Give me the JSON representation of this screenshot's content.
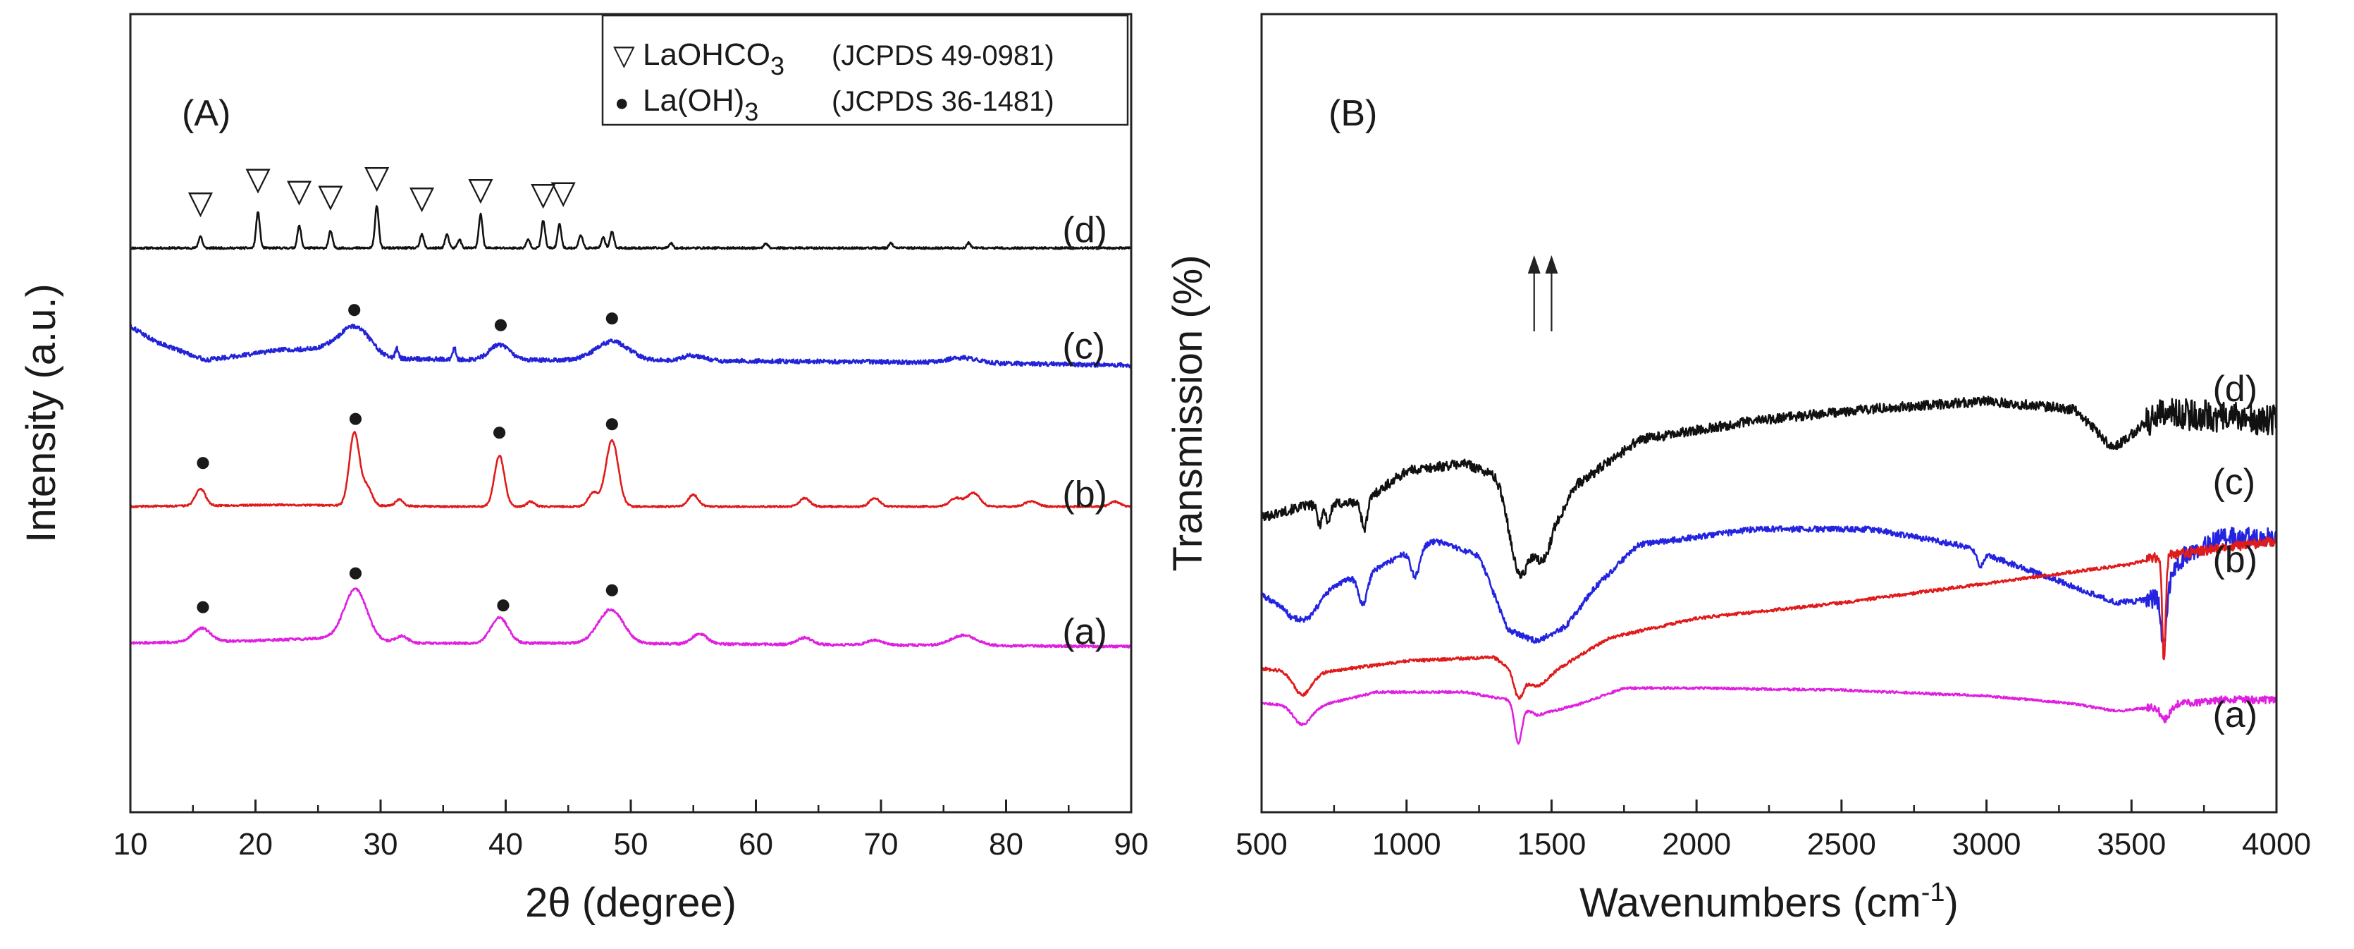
{
  "chart_data": [
    {
      "panel": "(A)",
      "type": "line",
      "xlabel": "2θ (degree)",
      "ylabel": "Intensity (a.u.)",
      "xlim": [
        10,
        90
      ],
      "xticks": [
        10,
        20,
        30,
        40,
        50,
        60,
        70,
        80,
        90
      ],
      "legend": {
        "position": "top-right",
        "entries": [
          {
            "marker": "▽",
            "label_main": "LaOHCO",
            "label_sub": "3",
            "ref": "(JCPDS 49-0981)"
          },
          {
            "marker": "●",
            "label_main": "La(OH)",
            "label_sub": "3",
            "ref": "(JCPDS 36-1481)"
          }
        ]
      },
      "series": [
        {
          "name": "(d)",
          "color": "#111111",
          "baseline": 0.55,
          "noise": 0.06,
          "hump": [],
          "peaks": [
            [
              15.6,
              0.7,
              0.15
            ],
            [
              20.2,
              2.1,
              0.15
            ],
            [
              23.5,
              1.3,
              0.15
            ],
            [
              26.0,
              1.0,
              0.15
            ],
            [
              29.7,
              2.5,
              0.15
            ],
            [
              33.3,
              0.8,
              0.15
            ],
            [
              35.3,
              0.8,
              0.15
            ],
            [
              36.3,
              0.5,
              0.15
            ],
            [
              38.0,
              2.0,
              0.15
            ],
            [
              41.8,
              0.5,
              0.15
            ],
            [
              43.0,
              1.6,
              0.15
            ],
            [
              44.3,
              1.4,
              0.15
            ],
            [
              46.0,
              0.8,
              0.15
            ],
            [
              47.8,
              0.6,
              0.15
            ],
            [
              48.5,
              1.0,
              0.15
            ],
            [
              53.2,
              0.3,
              0.15
            ],
            [
              60.8,
              0.3,
              0.15
            ],
            [
              70.8,
              0.3,
              0.15
            ],
            [
              77.0,
              0.3,
              0.15
            ]
          ],
          "markers": [
            {
              "symbol": "▽",
              "x": 15.6,
              "level": 2.6
            },
            {
              "symbol": "▽",
              "x": 20.2,
              "level": 4.0
            },
            {
              "symbol": "▽",
              "x": 23.5,
              "level": 3.3
            },
            {
              "symbol": "▽",
              "x": 26.0,
              "level": 3.0
            },
            {
              "symbol": "▽",
              "x": 29.7,
              "level": 4.1
            },
            {
              "symbol": "▽",
              "x": 33.3,
              "level": 2.9
            },
            {
              "symbol": "▽",
              "x": 38.0,
              "level": 3.4
            },
            {
              "symbol": "▽",
              "x": 43.0,
              "level": 3.1
            },
            {
              "symbol": "▽",
              "x": 44.6,
              "level": 3.2
            }
          ]
        },
        {
          "name": "(c)",
          "color": "#2323d8",
          "baseline": 0.5,
          "noise": 0.13,
          "hump": [
            [
              10,
              2.3
            ],
            [
              12,
              1.4
            ],
            [
              16,
              0.3
            ],
            [
              22,
              0.9
            ],
            [
              26,
              1.0
            ],
            [
              30,
              0.4
            ],
            [
              40,
              0.3
            ],
            [
              50,
              0.3
            ],
            [
              70,
              0.2
            ],
            [
              90,
              0.0
            ]
          ],
          "peaks": [
            [
              28.0,
              1.6,
              1.2
            ],
            [
              39.5,
              0.9,
              0.8
            ],
            [
              48.5,
              1.1,
              1.3
            ],
            [
              31.3,
              0.6,
              0.12
            ],
            [
              35.9,
              0.7,
              0.12
            ],
            [
              55.0,
              0.3,
              0.8
            ],
            [
              76.5,
              0.3,
              1.2
            ]
          ],
          "markers": [
            {
              "symbol": "●",
              "x": 27.9,
              "level": 3.3
            },
            {
              "symbol": "●",
              "x": 39.6,
              "level": 2.4
            },
            {
              "symbol": "●",
              "x": 48.5,
              "level": 2.8
            }
          ]
        },
        {
          "name": "(b)",
          "color": "#e01b1b",
          "baseline": 0.9,
          "noise": 0.05,
          "hump": [
            [
              10,
              0.0
            ],
            [
              22,
              0.1
            ],
            [
              35,
              0.0
            ],
            [
              90,
              0.0
            ]
          ],
          "peaks": [
            [
              15.6,
              1.0,
              0.4
            ],
            [
              27.9,
              4.3,
              0.4
            ],
            [
              28.9,
              1.1,
              0.4
            ],
            [
              31.5,
              0.4,
              0.3
            ],
            [
              39.5,
              3.0,
              0.4
            ],
            [
              42.0,
              0.3,
              0.3
            ],
            [
              47.0,
              0.8,
              0.4
            ],
            [
              48.5,
              3.9,
              0.5
            ],
            [
              55.0,
              0.7,
              0.4
            ],
            [
              63.9,
              0.5,
              0.4
            ],
            [
              69.5,
              0.5,
              0.4
            ],
            [
              76.0,
              0.5,
              0.5
            ],
            [
              77.4,
              0.8,
              0.5
            ],
            [
              82.0,
              0.3,
              0.5
            ],
            [
              88.7,
              0.3,
              0.4
            ]
          ],
          "markers": [
            {
              "symbol": "●",
              "x": 15.8,
              "level": 3.0
            },
            {
              "symbol": "●",
              "x": 28.0,
              "level": 5.6
            },
            {
              "symbol": "●",
              "x": 39.5,
              "level": 4.8
            },
            {
              "symbol": "●",
              "x": 48.5,
              "level": 5.3
            }
          ]
        },
        {
          "name": "(a)",
          "color": "#e020e0",
          "baseline": 0.75,
          "noise": 0.07,
          "hump": [
            [
              10,
              0.2
            ],
            [
              20,
              0.35
            ],
            [
              26,
              0.5
            ],
            [
              32,
              0.2
            ],
            [
              45,
              0.2
            ],
            [
              90,
              0.0
            ]
          ],
          "peaks": [
            [
              15.7,
              0.8,
              0.7
            ],
            [
              28.0,
              3.0,
              0.9
            ],
            [
              31.7,
              0.4,
              0.5
            ],
            [
              39.5,
              1.5,
              0.7
            ],
            [
              48.4,
              2.0,
              1.0
            ],
            [
              55.5,
              0.6,
              0.6
            ],
            [
              63.9,
              0.4,
              0.6
            ],
            [
              69.5,
              0.3,
              0.6
            ],
            [
              76.6,
              0.6,
              1.0
            ]
          ],
          "markers": [
            {
              "symbol": "●",
              "x": 15.8,
              "level": 2.6
            },
            {
              "symbol": "●",
              "x": 28.0,
              "level": 4.6
            },
            {
              "symbol": "●",
              "x": 39.8,
              "level": 2.7
            },
            {
              "symbol": "●",
              "x": 48.5,
              "level": 3.6
            }
          ]
        }
      ]
    },
    {
      "panel": "(B)",
      "type": "line",
      "xlabel_main": "Wavenumbers (cm",
      "xlabel_sup": "-1",
      "xlabel_end": ")",
      "ylabel": "Transmission (%)",
      "xlim": [
        500,
        4000
      ],
      "xticks": [
        500,
        1000,
        1500,
        2000,
        2500,
        3000,
        3500,
        4000
      ],
      "arrows_x": [
        1440,
        1500
      ],
      "series": [
        {
          "name": "(d)",
          "color": "#111111",
          "noise": 0.25,
          "anchors": [
            [
              500,
              7.6
            ],
            [
              650,
              7.9
            ],
            [
              850,
              8.0
            ],
            [
              1000,
              8.8
            ],
            [
              1200,
              9.0
            ],
            [
              1300,
              8.7
            ],
            [
              1350,
              8.2
            ],
            [
              1600,
              8.5
            ],
            [
              1800,
              9.6
            ],
            [
              2200,
              10.1
            ],
            [
              2600,
              10.4
            ],
            [
              3000,
              10.6
            ],
            [
              3300,
              10.4
            ],
            [
              3430,
              9.7
            ],
            [
              3600,
              10.3
            ],
            [
              4000,
              10.1
            ]
          ],
          "dips": [
            [
              700,
              0.5,
              8
            ],
            [
              730,
              0.45,
              8
            ],
            [
              855,
              0.7,
              10
            ],
            [
              1390,
              2.0,
              30
            ],
            [
              1470,
              1.8,
              35
            ],
            [
              1540,
              0.4,
              20
            ],
            [
              3450,
              0.3,
              60
            ]
          ]
        },
        {
          "name": "(c)",
          "color": "#2424e0",
          "noise": 0.15,
          "anchors": [
            [
              500,
              5.6
            ],
            [
              600,
              5.2
            ],
            [
              700,
              5.7
            ],
            [
              900,
              6.3
            ],
            [
              1000,
              6.7
            ],
            [
              1100,
              7.0
            ],
            [
              1250,
              6.6
            ],
            [
              1350,
              4.7
            ],
            [
              1450,
              4.4
            ],
            [
              1550,
              4.8
            ],
            [
              1650,
              5.8
            ],
            [
              1800,
              6.9
            ],
            [
              2200,
              7.3
            ],
            [
              2600,
              7.3
            ],
            [
              2900,
              6.9
            ],
            [
              3200,
              6.1
            ],
            [
              3450,
              5.4
            ],
            [
              3580,
              5.5
            ],
            [
              3680,
              6.6
            ],
            [
              3800,
              7.1
            ],
            [
              4000,
              7.1
            ]
          ],
          "dips": [
            [
              660,
              0.5,
              40
            ],
            [
              850,
              0.8,
              15
            ],
            [
              1030,
              0.7,
              15
            ],
            [
              2980,
              0.35,
              10
            ],
            [
              3612,
              1.6,
              10
            ]
          ]
        },
        {
          "name": "(b)",
          "color": "#e01b1b",
          "noise": 0.08,
          "anchors": [
            [
              500,
              3.7
            ],
            [
              700,
              3.6
            ],
            [
              1000,
              3.9
            ],
            [
              1300,
              4.0
            ],
            [
              1400,
              3.5
            ],
            [
              1500,
              3.6
            ],
            [
              1700,
              4.5
            ],
            [
              2000,
              5.0
            ],
            [
              2500,
              5.4
            ],
            [
              3000,
              5.9
            ],
            [
              3300,
              6.2
            ],
            [
              3500,
              6.4
            ],
            [
              3600,
              6.6
            ],
            [
              4000,
              7.0
            ]
          ],
          "dips": [
            [
              640,
              0.6,
              30
            ],
            [
              1385,
              0.6,
              15
            ],
            [
              1450,
              0.3,
              30
            ],
            [
              3612,
              2.7,
              6
            ]
          ]
        },
        {
          "name": "(a)",
          "color": "#e020e0",
          "noise": 0.06,
          "anchors": [
            [
              500,
              2.8
            ],
            [
              700,
              2.75
            ],
            [
              900,
              3.1
            ],
            [
              1200,
              3.1
            ],
            [
              1350,
              2.9
            ],
            [
              1450,
              2.5
            ],
            [
              1600,
              2.8
            ],
            [
              1750,
              3.2
            ],
            [
              2000,
              3.2
            ],
            [
              2500,
              3.15
            ],
            [
              3000,
              3.0
            ],
            [
              3300,
              2.8
            ],
            [
              3450,
              2.6
            ],
            [
              3620,
              2.75
            ],
            [
              3800,
              2.9
            ],
            [
              4000,
              2.9
            ]
          ],
          "dips": [
            [
              640,
              0.5,
              30
            ],
            [
              1385,
              1.0,
              12
            ],
            [
              3615,
              0.35,
              15
            ]
          ]
        }
      ]
    }
  ]
}
